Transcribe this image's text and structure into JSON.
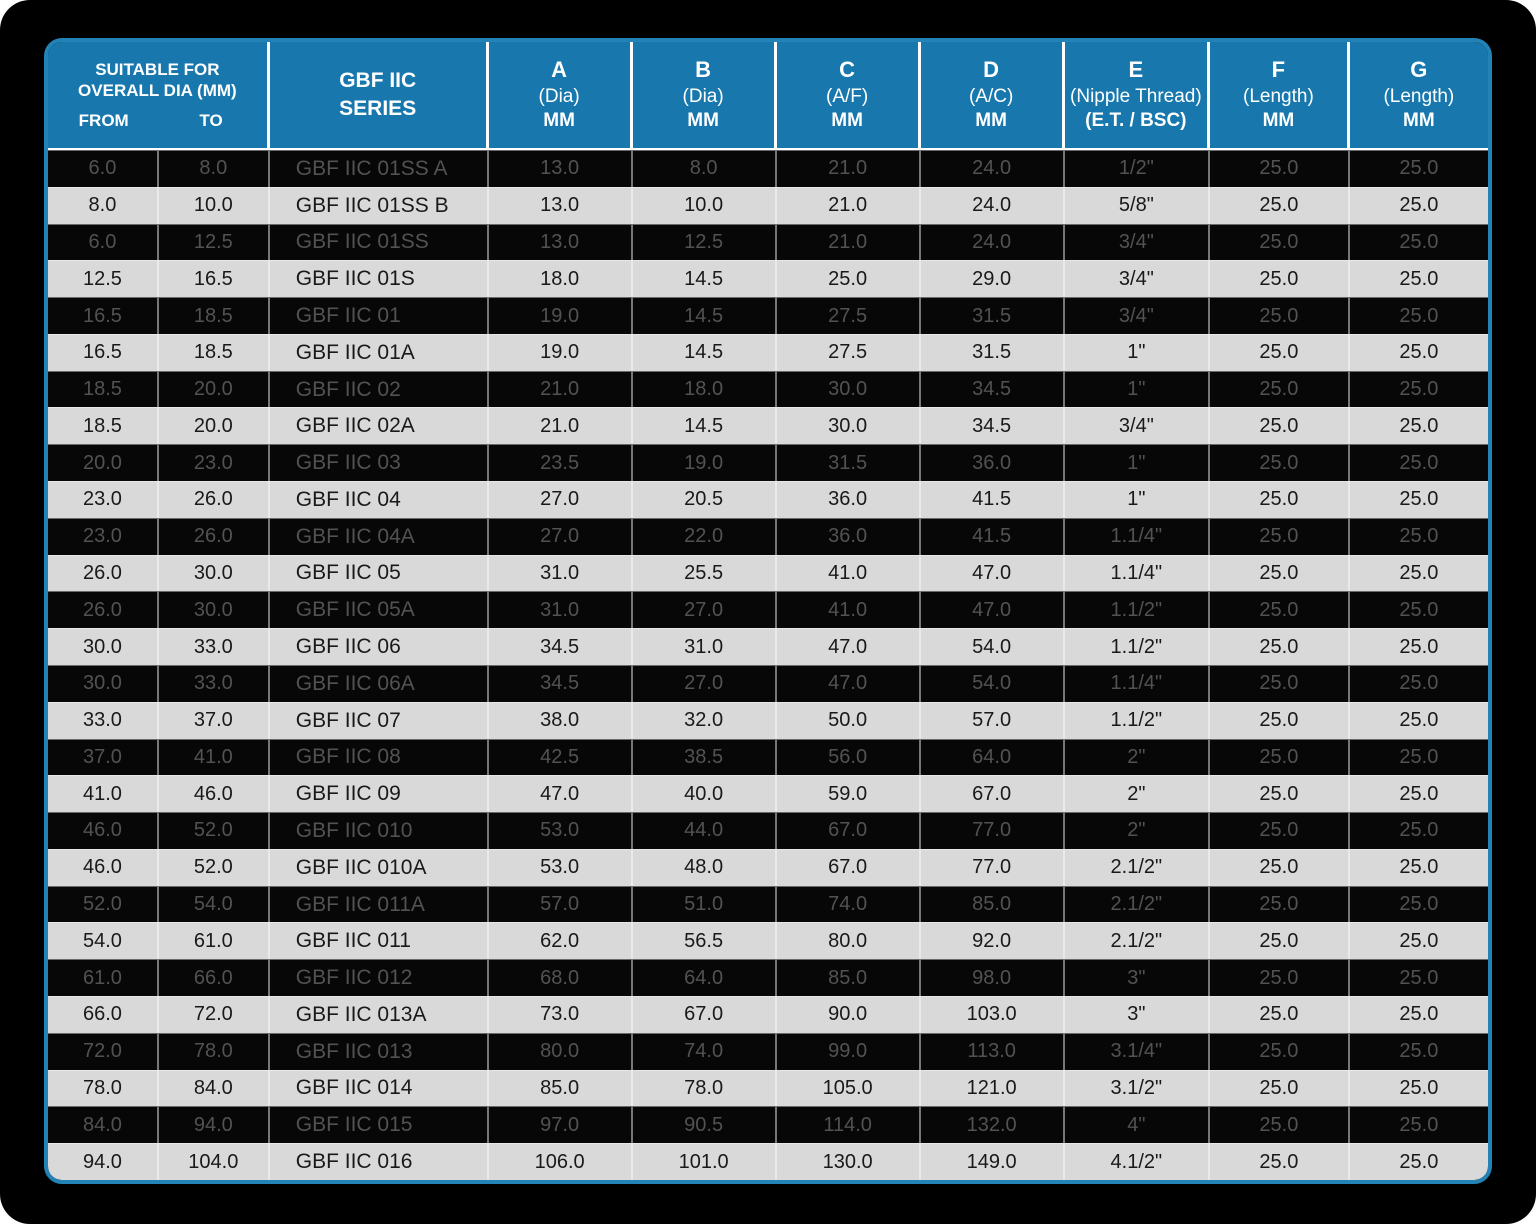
{
  "table": {
    "group_header_line1": "SUITABLE FOR",
    "group_header_line2": "OVERALL DIA (MM)",
    "sub_headers": {
      "from": "FROM",
      "to": "TO"
    },
    "series_header": {
      "line1": "GBF IIC",
      "line2": "SERIES"
    },
    "columns": [
      {
        "letter": "A",
        "desc": "(Dia)",
        "unit": "MM"
      },
      {
        "letter": "B",
        "desc": "(Dia)",
        "unit": "MM"
      },
      {
        "letter": "C",
        "desc": "(A/F)",
        "unit": "MM"
      },
      {
        "letter": "D",
        "desc": "(A/C)",
        "unit": "MM"
      },
      {
        "letter": "E",
        "desc": "(Nipple Thread)",
        "unit": "(E.T. / BSC)"
      },
      {
        "letter": "F",
        "desc": "(Length)",
        "unit": "MM"
      },
      {
        "letter": "G",
        "desc": "(Length)",
        "unit": "MM"
      }
    ],
    "rows": [
      [
        "6.0",
        "8.0",
        "GBF IIC 01SS A",
        "13.0",
        "8.0",
        "21.0",
        "24.0",
        "1/2\"",
        "25.0",
        "25.0"
      ],
      [
        "8.0",
        "10.0",
        "GBF IIC 01SS B",
        "13.0",
        "10.0",
        "21.0",
        "24.0",
        "5/8\"",
        "25.0",
        "25.0"
      ],
      [
        "6.0",
        "12.5",
        "GBF IIC 01SS",
        "13.0",
        "12.5",
        "21.0",
        "24.0",
        "3/4\"",
        "25.0",
        "25.0"
      ],
      [
        "12.5",
        "16.5",
        "GBF IIC 01S",
        "18.0",
        "14.5",
        "25.0",
        "29.0",
        "3/4\"",
        "25.0",
        "25.0"
      ],
      [
        "16.5",
        "18.5",
        "GBF IIC 01",
        "19.0",
        "14.5",
        "27.5",
        "31.5",
        "3/4\"",
        "25.0",
        "25.0"
      ],
      [
        "16.5",
        "18.5",
        "GBF IIC 01A",
        "19.0",
        "14.5",
        "27.5",
        "31.5",
        "1\"",
        "25.0",
        "25.0"
      ],
      [
        "18.5",
        "20.0",
        "GBF IIC 02",
        "21.0",
        "18.0",
        "30.0",
        "34.5",
        "1\"",
        "25.0",
        "25.0"
      ],
      [
        "18.5",
        "20.0",
        "GBF IIC 02A",
        "21.0",
        "14.5",
        "30.0",
        "34.5",
        "3/4\"",
        "25.0",
        "25.0"
      ],
      [
        "20.0",
        "23.0",
        "GBF IIC 03",
        "23.5",
        "19.0",
        "31.5",
        "36.0",
        "1\"",
        "25.0",
        "25.0"
      ],
      [
        "23.0",
        "26.0",
        "GBF IIC 04",
        "27.0",
        "20.5",
        "36.0",
        "41.5",
        "1\"",
        "25.0",
        "25.0"
      ],
      [
        "23.0",
        "26.0",
        "GBF IIC 04A",
        "27.0",
        "22.0",
        "36.0",
        "41.5",
        "1.1/4\"",
        "25.0",
        "25.0"
      ],
      [
        "26.0",
        "30.0",
        "GBF IIC 05",
        "31.0",
        "25.5",
        "41.0",
        "47.0",
        "1.1/4\"",
        "25.0",
        "25.0"
      ],
      [
        "26.0",
        "30.0",
        "GBF IIC 05A",
        "31.0",
        "27.0",
        "41.0",
        "47.0",
        "1.1/2\"",
        "25.0",
        "25.0"
      ],
      [
        "30.0",
        "33.0",
        "GBF IIC 06",
        "34.5",
        "31.0",
        "47.0",
        "54.0",
        "1.1/2\"",
        "25.0",
        "25.0"
      ],
      [
        "30.0",
        "33.0",
        "GBF IIC 06A",
        "34.5",
        "27.0",
        "47.0",
        "54.0",
        "1.1/4\"",
        "25.0",
        "25.0"
      ],
      [
        "33.0",
        "37.0",
        "GBF IIC 07",
        "38.0",
        "32.0",
        "50.0",
        "57.0",
        "1.1/2\"",
        "25.0",
        "25.0"
      ],
      [
        "37.0",
        "41.0",
        "GBF IIC 08",
        "42.5",
        "38.5",
        "56.0",
        "64.0",
        "2\"",
        "25.0",
        "25.0"
      ],
      [
        "41.0",
        "46.0",
        "GBF IIC 09",
        "47.0",
        "40.0",
        "59.0",
        "67.0",
        "2\"",
        "25.0",
        "25.0"
      ],
      [
        "46.0",
        "52.0",
        "GBF IIC 010",
        "53.0",
        "44.0",
        "67.0",
        "77.0",
        "2\"",
        "25.0",
        "25.0"
      ],
      [
        "46.0",
        "52.0",
        "GBF IIC 010A",
        "53.0",
        "48.0",
        "67.0",
        "77.0",
        "2.1/2\"",
        "25.0",
        "25.0"
      ],
      [
        "52.0",
        "54.0",
        "GBF IIC 011A",
        "57.0",
        "51.0",
        "74.0",
        "85.0",
        "2.1/2\"",
        "25.0",
        "25.0"
      ],
      [
        "54.0",
        "61.0",
        "GBF IIC 011",
        "62.0",
        "56.5",
        "80.0",
        "92.0",
        "2.1/2\"",
        "25.0",
        "25.0"
      ],
      [
        "61.0",
        "66.0",
        "GBF IIC 012",
        "68.0",
        "64.0",
        "85.0",
        "98.0",
        "3\"",
        "25.0",
        "25.0"
      ],
      [
        "66.0",
        "72.0",
        "GBF IIC 013A",
        "73.0",
        "67.0",
        "90.0",
        "103.0",
        "3\"",
        "25.0",
        "25.0"
      ],
      [
        "72.0",
        "78.0",
        "GBF IIC 013",
        "80.0",
        "74.0",
        "99.0",
        "113.0",
        "3.1/4\"",
        "25.0",
        "25.0"
      ],
      [
        "78.0",
        "84.0",
        "GBF IIC 014",
        "85.0",
        "78.0",
        "105.0",
        "121.0",
        "3.1/2\"",
        "25.0",
        "25.0"
      ],
      [
        "84.0",
        "94.0",
        "GBF IIC 015",
        "97.0",
        "90.5",
        "114.0",
        "132.0",
        "4\"",
        "25.0",
        "25.0"
      ],
      [
        "94.0",
        "104.0",
        "GBF IIC 016",
        "106.0",
        "101.0",
        "130.0",
        "149.0",
        "4.1/2\"",
        "25.0",
        "25.0"
      ]
    ]
  },
  "colors": {
    "header_blue": "#1878ad",
    "border_blue": "#2383b7",
    "dark_row_bg": "#070707",
    "dark_row_text": "#525252",
    "light_row_bg": "#d9d9d9",
    "light_row_text": "#191919",
    "page_bg": "#000000"
  }
}
